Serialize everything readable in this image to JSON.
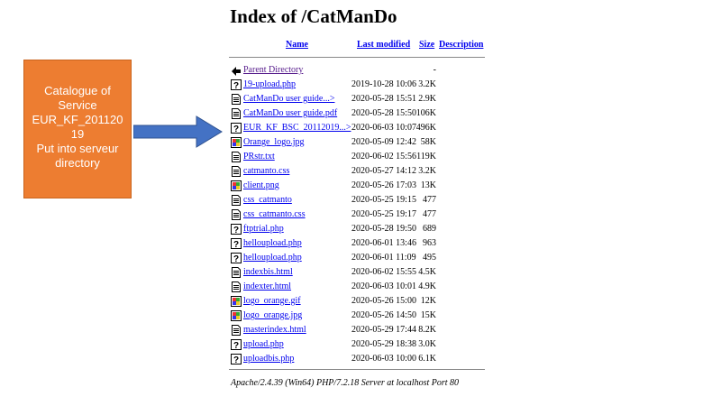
{
  "page": {
    "title": "Index of /CatManDo"
  },
  "columns": {
    "name": "Name",
    "last_modified": "Last modified",
    "size": "Size",
    "description": "Description"
  },
  "parent": {
    "name": "Parent Directory",
    "size": "-"
  },
  "files": [
    {
      "icon": "unknown-file-icon",
      "name": "19-upload.php",
      "modified": "2019-10-28 10:06",
      "size": "3.2K"
    },
    {
      "icon": "text-file-icon",
      "name": "CatManDo user guide...>",
      "modified": "2020-05-28 15:51",
      "size": "2.9K"
    },
    {
      "icon": "text-file-icon",
      "name": "CatManDo user guide.pdf",
      "modified": "2020-05-28 15:50",
      "size": "106K"
    },
    {
      "icon": "unknown-file-icon",
      "name": "EUR_KF_BSC_20112019...>",
      "modified": "2020-06-03 10:07",
      "size": "496K"
    },
    {
      "icon": "image-file-icon",
      "name": "Orange_logo.jpg",
      "modified": "2020-05-09 12:42",
      "size": "58K"
    },
    {
      "icon": "text-file-icon",
      "name": "PRstr.txt",
      "modified": "2020-06-02 15:56",
      "size": "119K"
    },
    {
      "icon": "text-file-icon",
      "name": "catmanto.css",
      "modified": "2020-05-27 14:12",
      "size": "3.2K"
    },
    {
      "icon": "image-file-icon",
      "name": "client.png",
      "modified": "2020-05-26 17:03",
      "size": "13K"
    },
    {
      "icon": "text-file-icon",
      "name": "css_catmanto",
      "modified": "2020-05-25 19:15",
      "size": "477"
    },
    {
      "icon": "text-file-icon",
      "name": "css_catmanto.css",
      "modified": "2020-05-25 19:17",
      "size": "477"
    },
    {
      "icon": "unknown-file-icon",
      "name": "ftptrial.php",
      "modified": "2020-05-28 19:50",
      "size": "689"
    },
    {
      "icon": "unknown-file-icon",
      "name": "helloupload.php",
      "modified": "2020-06-01 13:46",
      "size": "963"
    },
    {
      "icon": "unknown-file-icon",
      "name": "helloupload.php",
      "modified": "2020-06-01 11:09",
      "size": "495"
    },
    {
      "icon": "text-file-icon",
      "name": "indexbis.html",
      "modified": "2020-06-02 15:55",
      "size": "4.5K"
    },
    {
      "icon": "text-file-icon",
      "name": "indexter.html",
      "modified": "2020-06-03 10:01",
      "size": "4.9K"
    },
    {
      "icon": "image-file-icon",
      "name": "logo_orange.gif",
      "modified": "2020-05-26 15:00",
      "size": "12K"
    },
    {
      "icon": "image-file-icon",
      "name": "logo_orange.jpg",
      "modified": "2020-05-26 14:50",
      "size": "15K"
    },
    {
      "icon": "text-file-icon",
      "name": "masterindex.html",
      "modified": "2020-05-29 17:44",
      "size": "8.2K"
    },
    {
      "icon": "unknown-file-icon",
      "name": "upload.php",
      "modified": "2020-05-29 18:38",
      "size": "3.0K"
    },
    {
      "icon": "unknown-file-icon",
      "name": "uploadbis.php",
      "modified": "2020-06-03 10:00",
      "size": "6.1K"
    }
  ],
  "footer": {
    "text": "Apache/2.4.39 (Win64) PHP/7.2.18 Server at localhost Port 80"
  },
  "callout": {
    "lines": [
      "Catalogue of",
      "Service",
      "EUR_KF_201120",
      "19",
      "Put into serveur",
      "directory"
    ],
    "fill_color": "#ed7d31",
    "arrow_color": "#4472c4"
  },
  "colors": {
    "link": "#0000ee",
    "visited": "#551a8b"
  }
}
